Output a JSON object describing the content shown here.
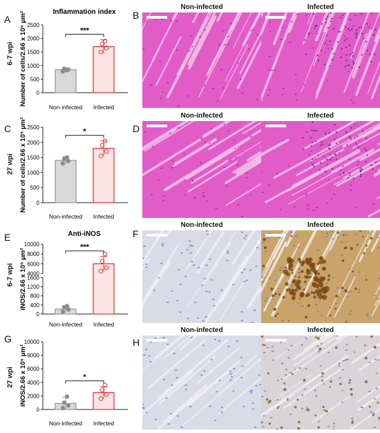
{
  "panels": {
    "A": "A",
    "B": "B",
    "C": "C",
    "D": "D",
    "E": "E",
    "F": "F",
    "G": "G",
    "H": "H"
  },
  "row_labels": [
    "6-7 wpi",
    "27 wpi",
    "6-7 wpi",
    "27 wpi"
  ],
  "photo_titles": {
    "non_infected": "Non-infected",
    "infected": "Infected"
  },
  "stain_colors": {
    "he_bg": "#e25cc8",
    "he_fiber": "#c93fb0",
    "he_gap": "#f2c6ea",
    "ihc_bg": "#d9dbe6",
    "ihc_nuclei": "#6a7cc2",
    "ihc_brown": "#7a4a12",
    "ihc_tan": "#c9a46a"
  },
  "chart_data": [
    {
      "type": "bar",
      "title": "Inflammation index",
      "ylabel": "Number of cells/2.66 x 10⁵ μm²",
      "categories": [
        "Non-infected",
        "Infected"
      ],
      "values": [
        850,
        1700
      ],
      "errors": [
        70,
        250
      ],
      "points": [
        [
          780,
          850,
          880,
          830
        ],
        [
          1500,
          1650,
          1800,
          1900
        ]
      ],
      "ylim": [
        0,
        2500
      ],
      "yticks": [
        "0",
        "500",
        "1000",
        "1500",
        "2000",
        "2500"
      ],
      "significance": "***",
      "colors": [
        "#9a9a9a",
        "#e23a3a"
      ]
    },
    {
      "type": "bar",
      "title": "",
      "ylabel": "Number of cells/2.66 x 10⁵ μm²",
      "categories": [
        "Non-infected",
        "Infected"
      ],
      "values": [
        1400,
        1800
      ],
      "errors": [
        130,
        250
      ],
      "points": [
        [
          1300,
          1380,
          1450,
          1500
        ],
        [
          1550,
          1700,
          1900,
          2050
        ]
      ],
      "ylim": [
        0,
        2500
      ],
      "yticks": [
        "0",
        "500",
        "1000",
        "1500",
        "2000",
        "2500"
      ],
      "significance": "*",
      "colors": [
        "#9a9a9a",
        "#e23a3a"
      ]
    },
    {
      "type": "bar",
      "title": "Anti-iNOS",
      "ylabel": "iNOS/2.66 x 10⁵ μm²",
      "categories": [
        "Non-infected",
        "Infected"
      ],
      "values": [
        220,
        6000
      ],
      "errors": [
        150,
        1500
      ],
      "points": [
        [
          100,
          200,
          300,
          350
        ],
        [
          4500,
          5200,
          6500,
          8000
        ]
      ],
      "ylim": [
        0,
        10000
      ],
      "axis_break": [
        1600,
        4000
      ],
      "yticks": [
        "0",
        "400",
        "800",
        "1200",
        "1600",
        "4000",
        "6000",
        "8000",
        "10000"
      ],
      "significance": "***",
      "colors": [
        "#9a9a9a",
        "#e23a3a"
      ]
    },
    {
      "type": "bar",
      "title": "",
      "ylabel": "iNOS/2.66 x 10⁵ μm²",
      "categories": [
        "Non-infected",
        "Infected"
      ],
      "values": [
        900,
        2500
      ],
      "errors": [
        900,
        900
      ],
      "points": [
        [
          200,
          600,
          1000,
          1900
        ],
        [
          1600,
          2200,
          2900,
          3600
        ]
      ],
      "ylim": [
        0,
        10000
      ],
      "yticks": [
        "0",
        "2000",
        "4000",
        "6000",
        "8000",
        "10000"
      ],
      "significance": "*",
      "colors": [
        "#9a9a9a",
        "#e23a3a"
      ]
    }
  ]
}
